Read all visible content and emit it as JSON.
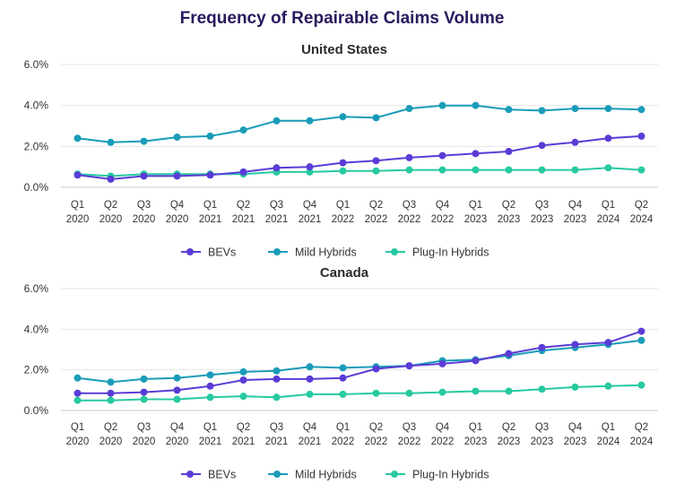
{
  "page_title": "Frequency of Repairable Claims Volume",
  "colors": {
    "BEVs": "#5b3bd6",
    "Mild Hybrids": "#1a9cb8",
    "Plug-In Hybrids": "#27c9a0"
  },
  "chart_data": [
    {
      "type": "line",
      "title": "United States",
      "x": [
        "Q1 2020",
        "Q2 2020",
        "Q3 2020",
        "Q4 2020",
        "Q1 2021",
        "Q2 2021",
        "Q3 2021",
        "Q4 2021",
        "Q1 2022",
        "Q2 2022",
        "Q3 2022",
        "Q4 2022",
        "Q1 2023",
        "Q2 2023",
        "Q3 2023",
        "Q4 2023",
        "Q1 2024",
        "Q2 2024"
      ],
      "x_tick_lines": [
        [
          "Q1",
          "2020"
        ],
        [
          "Q2",
          "2020"
        ],
        [
          "Q3",
          "2020"
        ],
        [
          "Q4",
          "2020"
        ],
        [
          "Q1",
          "2021"
        ],
        [
          "Q2",
          "2021"
        ],
        [
          "Q3",
          "2021"
        ],
        [
          "Q4",
          "2021"
        ],
        [
          "Q1",
          "2022"
        ],
        [
          "Q2",
          "2022"
        ],
        [
          "Q3",
          "2022"
        ],
        [
          "Q4",
          "2022"
        ],
        [
          "Q1",
          "2023"
        ],
        [
          "Q2",
          "2023"
        ],
        [
          "Q3",
          "2023"
        ],
        [
          "Q4",
          "2023"
        ],
        [
          "Q1",
          "2024"
        ],
        [
          "Q2",
          "2024"
        ]
      ],
      "y_ticks": [
        "0.0%",
        "2.0%",
        "4.0%",
        "6.0%"
      ],
      "ylim": [
        0,
        6
      ],
      "grid": "horizontal",
      "legend_position": "bottom",
      "series": [
        {
          "name": "BEVs",
          "values": [
            0.6,
            0.4,
            0.55,
            0.55,
            0.6,
            0.75,
            0.95,
            1.0,
            1.2,
            1.3,
            1.45,
            1.55,
            1.65,
            1.75,
            2.05,
            2.2,
            2.4,
            2.5
          ]
        },
        {
          "name": "Mild Hybrids",
          "values": [
            2.4,
            2.2,
            2.25,
            2.45,
            2.5,
            2.8,
            3.25,
            3.25,
            3.45,
            3.4,
            3.85,
            4.0,
            4.0,
            3.8,
            3.75,
            3.85,
            3.85,
            3.8
          ]
        },
        {
          "name": "Plug-In Hybrids",
          "values": [
            0.65,
            0.55,
            0.65,
            0.65,
            0.65,
            0.65,
            0.75,
            0.75,
            0.8,
            0.8,
            0.85,
            0.85,
            0.85,
            0.85,
            0.85,
            0.85,
            0.95,
            0.85
          ]
        }
      ]
    },
    {
      "type": "line",
      "title": "Canada",
      "x": [
        "Q1 2020",
        "Q2 2020",
        "Q3 2020",
        "Q4 2020",
        "Q1 2021",
        "Q2 2021",
        "Q3 2021",
        "Q4 2021",
        "Q1 2022",
        "Q2 2022",
        "Q3 2022",
        "Q4 2022",
        "Q1 2023",
        "Q2 2023",
        "Q3 2023",
        "Q4 2023",
        "Q1 2024",
        "Q2 2024"
      ],
      "x_tick_lines": [
        [
          "Q1",
          "2020"
        ],
        [
          "Q2",
          "2020"
        ],
        [
          "Q3",
          "2020"
        ],
        [
          "Q4",
          "2020"
        ],
        [
          "Q1",
          "2021"
        ],
        [
          "Q2",
          "2021"
        ],
        [
          "Q3",
          "2021"
        ],
        [
          "Q4",
          "2021"
        ],
        [
          "Q1",
          "2022"
        ],
        [
          "Q2",
          "2022"
        ],
        [
          "Q3",
          "2022"
        ],
        [
          "Q4",
          "2022"
        ],
        [
          "Q1",
          "2023"
        ],
        [
          "Q2",
          "2023"
        ],
        [
          "Q3",
          "2023"
        ],
        [
          "Q4",
          "2023"
        ],
        [
          "Q1",
          "2024"
        ],
        [
          "Q2",
          "2024"
        ]
      ],
      "y_ticks": [
        "0.0%",
        "2.0%",
        "4.0%",
        "6.0%"
      ],
      "ylim": [
        0,
        6
      ],
      "grid": "horizontal",
      "legend_position": "bottom",
      "series": [
        {
          "name": "BEVs",
          "values": [
            0.85,
            0.85,
            0.9,
            1.0,
            1.2,
            1.5,
            1.55,
            1.55,
            1.6,
            2.05,
            2.2,
            2.3,
            2.45,
            2.8,
            3.1,
            3.25,
            3.35,
            3.9
          ]
        },
        {
          "name": "Mild Hybrids",
          "values": [
            1.6,
            1.4,
            1.55,
            1.6,
            1.75,
            1.9,
            1.95,
            2.15,
            2.1,
            2.15,
            2.2,
            2.45,
            2.5,
            2.7,
            2.95,
            3.1,
            3.25,
            3.45
          ]
        },
        {
          "name": "Plug-In Hybrids",
          "values": [
            0.5,
            0.5,
            0.55,
            0.55,
            0.65,
            0.7,
            0.65,
            0.8,
            0.8,
            0.85,
            0.85,
            0.9,
            0.95,
            0.95,
            1.05,
            1.15,
            1.2,
            1.25
          ]
        }
      ]
    }
  ]
}
